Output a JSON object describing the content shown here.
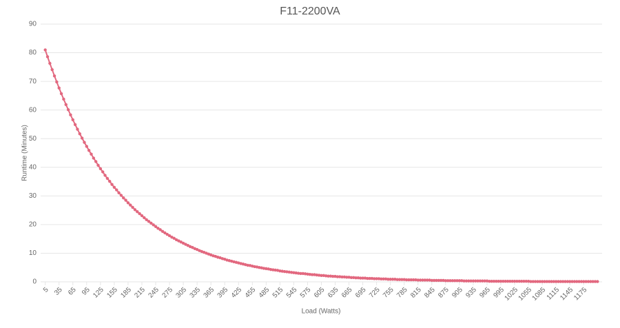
{
  "chart_data": {
    "type": "line",
    "title": "F11-2200VA",
    "xlabel": "Load (Watts)",
    "ylabel": "Runtime (Minutes)",
    "x": [
      5,
      10,
      15,
      20,
      25,
      30,
      35,
      40,
      45,
      50,
      55,
      60,
      65,
      70,
      75,
      80,
      85,
      90,
      95,
      100,
      105,
      110,
      115,
      120,
      125,
      130,
      135,
      140,
      145,
      150,
      155,
      160,
      165,
      170,
      175,
      180,
      185,
      190,
      195,
      200,
      205,
      210,
      215,
      220,
      225,
      230,
      235,
      240,
      245,
      250,
      255,
      260,
      265,
      270,
      275,
      280,
      285,
      290,
      295,
      300,
      305,
      310,
      315,
      320,
      325,
      330,
      335,
      340,
      345,
      350,
      355,
      360,
      365,
      370,
      375,
      380,
      385,
      390,
      395,
      400,
      405,
      410,
      415,
      420,
      425,
      430,
      435,
      440,
      445,
      450,
      455,
      460,
      465,
      470,
      475,
      480,
      485,
      490,
      495,
      500,
      505,
      510,
      515,
      520,
      525,
      530,
      535,
      540,
      545,
      550,
      555,
      560,
      565,
      570,
      575,
      580,
      585,
      590,
      595,
      600,
      605,
      610,
      615,
      620,
      625,
      630,
      635,
      640,
      645,
      650,
      655,
      660,
      665,
      670,
      675,
      680,
      685,
      690,
      695,
      700,
      705,
      710,
      715,
      720,
      725,
      730,
      735,
      740,
      745,
      750,
      755,
      760,
      765,
      770,
      775,
      780,
      785,
      790,
      795,
      800,
      805,
      810,
      815,
      820,
      825,
      830,
      835,
      840,
      845,
      850,
      855,
      860,
      865,
      870,
      875,
      880,
      885,
      890,
      895,
      900,
      905,
      910,
      915,
      920,
      925,
      930,
      935,
      940,
      945,
      950,
      955,
      960,
      965,
      970,
      975,
      980,
      985,
      990,
      995,
      1000,
      1005,
      1010,
      1015,
      1020,
      1025,
      1030,
      1035,
      1040,
      1045,
      1050,
      1055,
      1060,
      1065,
      1070,
      1075,
      1080,
      1085,
      1090,
      1095,
      1100,
      1105,
      1110,
      1115,
      1120,
      1125,
      1130,
      1135,
      1140,
      1145,
      1150,
      1155,
      1160,
      1165,
      1170,
      1175,
      1180,
      1185,
      1190,
      1195,
      1200,
      1205
    ],
    "series": [
      {
        "name": "Runtime (Minutes)",
        "color": "#e2687f",
        "values": [
          81,
          78.6,
          76.3,
          74.1,
          71.9,
          69.8,
          67.7,
          65.7,
          63.8,
          61.9,
          60.1,
          58.3,
          56.6,
          54.9,
          53.3,
          51.7,
          50.2,
          48.7,
          47.3,
          45.9,
          44.6,
          43.2,
          42.0,
          40.7,
          39.5,
          38.4,
          37.2,
          36.1,
          35.1,
          34.0,
          33.0,
          32.1,
          31.1,
          30.2,
          29.3,
          28.5,
          27.6,
          26.8,
          26.0,
          25.2,
          24.5,
          23.8,
          23.1,
          22.4,
          21.7,
          21.1,
          20.5,
          19.9,
          19.3,
          18.7,
          18.2,
          17.6,
          17.1,
          16.6,
          16.1,
          15.6,
          15.2,
          14.7,
          14.3,
          13.9,
          13.5,
          13.1,
          12.7,
          12.3,
          12.0,
          11.6,
          11.3,
          10.9,
          10.6,
          10.3,
          10.0,
          9.7,
          9.4,
          9.1,
          8.9,
          8.6,
          8.4,
          8.1,
          7.9,
          7.6,
          7.4,
          7.2,
          7.0,
          6.8,
          6.6,
          6.4,
          6.2,
          6.0,
          5.8,
          5.7,
          5.5,
          5.3,
          5.2,
          5.0,
          4.9,
          4.7,
          4.6,
          4.5,
          4.3,
          4.2,
          4.1,
          4.0,
          3.8,
          3.7,
          3.6,
          3.5,
          3.4,
          3.3,
          3.2,
          3.1,
          3.0,
          2.9,
          2.9,
          2.8,
          2.7,
          2.6,
          2.5,
          2.5,
          2.4,
          2.3,
          2.2,
          2.2,
          2.1,
          2.0,
          2.0,
          1.9,
          1.9,
          1.8,
          1.8,
          1.7,
          1.7,
          1.6,
          1.6,
          1.5,
          1.5,
          1.4,
          1.4,
          1.3,
          1.3,
          1.3,
          1.2,
          1.2,
          1.2,
          1.1,
          1.1,
          1.1,
          1.0,
          1.0,
          1.0,
          0.9,
          0.9,
          0.9,
          0.9,
          0.8,
          0.8,
          0.8,
          0.8,
          0.7,
          0.7,
          0.7,
          0.7,
          0.7,
          0.6,
          0.6,
          0.6,
          0.6,
          0.6,
          0.6,
          0.5,
          0.5,
          0.5,
          0.5,
          0.5,
          0.5,
          0.4,
          0.4,
          0.4,
          0.4,
          0.4,
          0.4,
          0.4,
          0.4,
          0.3,
          0.3,
          0.3,
          0.3,
          0.3,
          0.3,
          0.3,
          0.3,
          0.3,
          0.3,
          0.3,
          0.2,
          0.2,
          0.2,
          0.2,
          0.2,
          0.2,
          0.2,
          0.2,
          0.2,
          0.2,
          0.2,
          0.2,
          0.2,
          0.2,
          0.2,
          0.2,
          0.2,
          0.2,
          0.1,
          0.1,
          0.1,
          0.1,
          0.1,
          0.1,
          0.1,
          0.1,
          0.1,
          0.1,
          0.1,
          0.1,
          0.1,
          0.1,
          0.1,
          0.1,
          0.1,
          0.1,
          0.1,
          0.1,
          0.1,
          0.1,
          0.1,
          0.1,
          0.1,
          0.1,
          0.1,
          0.1,
          0.1,
          0.1
        ]
      }
    ],
    "xlim": [
      -5,
      1215
    ],
    "xticks": [
      5,
      35,
      65,
      95,
      125,
      155,
      185,
      215,
      245,
      275,
      305,
      335,
      365,
      395,
      425,
      455,
      485,
      515,
      545,
      575,
      605,
      635,
      665,
      695,
      725,
      755,
      785,
      815,
      845,
      875,
      905,
      935,
      965,
      995,
      1025,
      1055,
      1085,
      1115,
      1145,
      1175
    ],
    "ylim": [
      0,
      90
    ],
    "yticks": [
      0,
      10,
      20,
      30,
      40,
      50,
      60,
      70,
      80,
      90
    ],
    "grid": true
  }
}
